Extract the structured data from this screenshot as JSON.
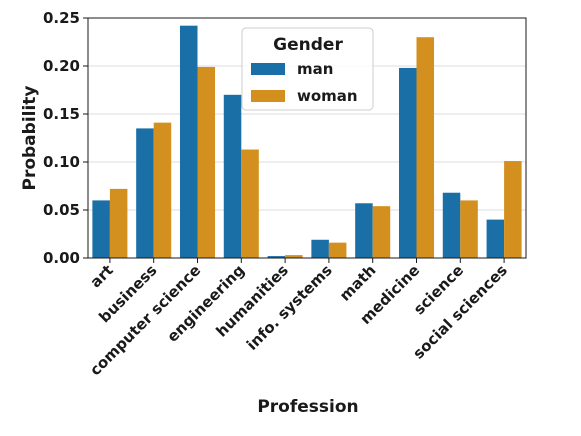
{
  "chart_data": {
    "type": "bar",
    "xlabel": "Profession",
    "ylabel": "Probability",
    "ylim": [
      0,
      0.25
    ],
    "yticks": [
      "0.00",
      "0.05",
      "0.10",
      "0.15",
      "0.20",
      "0.25"
    ],
    "grid": "horizontal",
    "legend_position": "top-center",
    "legend_title": "Gender",
    "categories": [
      "art",
      "business",
      "computer science",
      "engineering",
      "humanities",
      "info. systems",
      "math",
      "medicine",
      "science",
      "social sciences"
    ],
    "series": [
      {
        "name": "man",
        "color": "#1a6fa6",
        "values": [
          0.06,
          0.135,
          0.242,
          0.17,
          0.002,
          0.019,
          0.057,
          0.198,
          0.068,
          0.04
        ]
      },
      {
        "name": "woman",
        "color": "#d4901e",
        "values": [
          0.072,
          0.141,
          0.199,
          0.113,
          0.003,
          0.016,
          0.054,
          0.23,
          0.06,
          0.101
        ]
      }
    ]
  }
}
